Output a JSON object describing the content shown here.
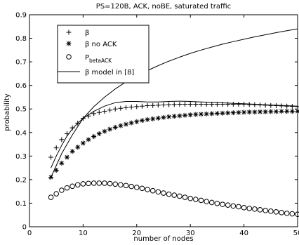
{
  "chart_data": {
    "type": "line",
    "title": "PS=120B, ACK, noBE, saturated traffic",
    "xlabel": "number of nodes",
    "ylabel": "probability",
    "xlim": [
      0,
      50
    ],
    "ylim": [
      0,
      0.9
    ],
    "xticks": [
      "0",
      "10",
      "20",
      "30",
      "40",
      "50"
    ],
    "yticks": [
      "0",
      "0.1",
      "0.2",
      "0.3",
      "0.4",
      "0.5",
      "0.6",
      "0.7",
      "0.8",
      "0.9"
    ],
    "grid": false,
    "legend_position": "top-left",
    "x": [
      4,
      5,
      6,
      7,
      8,
      9,
      10,
      11,
      12,
      13,
      14,
      15,
      16,
      17,
      18,
      19,
      20,
      21,
      22,
      23,
      24,
      25,
      26,
      27,
      28,
      29,
      30,
      31,
      32,
      33,
      34,
      35,
      36,
      37,
      38,
      39,
      40,
      41,
      42,
      43,
      44,
      45,
      46,
      47,
      48,
      49,
      50
    ],
    "series": [
      {
        "name": "β",
        "marker": "plus",
        "values": [
          0.295,
          0.335,
          0.37,
          0.395,
          0.42,
          0.44,
          0.46,
          0.47,
          0.48,
          0.485,
          0.49,
          0.495,
          0.5,
          0.503,
          0.506,
          0.508,
          0.51,
          0.512,
          0.514,
          0.515,
          0.516,
          0.517,
          0.518,
          0.519,
          0.52,
          0.52,
          0.52,
          0.52,
          0.52,
          0.52,
          0.52,
          0.52,
          0.52,
          0.52,
          0.52,
          0.52,
          0.52,
          0.519,
          0.518,
          0.517,
          0.516,
          0.515,
          0.514,
          0.513,
          0.512,
          0.511,
          0.51
        ]
      },
      {
        "name": "β no ACK",
        "marker": "asterisk",
        "values": [
          0.21,
          0.24,
          0.27,
          0.295,
          0.32,
          0.338,
          0.355,
          0.37,
          0.383,
          0.395,
          0.405,
          0.414,
          0.422,
          0.429,
          0.435,
          0.441,
          0.446,
          0.451,
          0.455,
          0.458,
          0.461,
          0.464,
          0.467,
          0.469,
          0.471,
          0.473,
          0.475,
          0.477,
          0.478,
          0.479,
          0.48,
          0.481,
          0.482,
          0.483,
          0.484,
          0.485,
          0.486,
          0.487,
          0.487,
          0.488,
          0.488,
          0.489,
          0.489,
          0.49,
          0.49,
          0.49,
          0.49
        ]
      },
      {
        "name": "P_betaACK",
        "marker": "circle",
        "values": [
          0.125,
          0.14,
          0.155,
          0.165,
          0.172,
          0.178,
          0.182,
          0.184,
          0.185,
          0.185,
          0.185,
          0.183,
          0.181,
          0.178,
          0.175,
          0.171,
          0.167,
          0.163,
          0.158,
          0.153,
          0.148,
          0.143,
          0.138,
          0.134,
          0.13,
          0.125,
          0.12,
          0.116,
          0.112,
          0.107,
          0.103,
          0.099,
          0.095,
          0.092,
          0.088,
          0.085,
          0.081,
          0.078,
          0.075,
          0.072,
          0.069,
          0.066,
          0.063,
          0.06,
          0.057,
          0.055,
          0.053
        ]
      }
    ],
    "model_series": [
      {
        "name": "β model in [8]",
        "x": [
          4,
          5,
          6,
          7,
          8,
          9,
          10,
          12,
          14,
          16,
          18,
          20,
          22,
          24,
          26,
          28,
          30,
          32,
          34,
          36,
          38,
          40,
          42,
          44,
          46,
          48,
          50
        ],
        "values": [
          0.25,
          0.3,
          0.345,
          0.385,
          0.415,
          0.44,
          0.46,
          0.49,
          0.512,
          0.527,
          0.532,
          0.532,
          0.53,
          0.53,
          0.532,
          0.533,
          0.532,
          0.53,
          0.528,
          0.526,
          0.524,
          0.522,
          0.52,
          0.518,
          0.516,
          0.514,
          0.512
        ]
      },
      {
        "name": "β model in [8]",
        "x": [
          4,
          6,
          8,
          10,
          12,
          14,
          16,
          18,
          20,
          22,
          24,
          26,
          28,
          30,
          32,
          34,
          36,
          38,
          40,
          42,
          44,
          46,
          48,
          50
        ],
        "values": [
          0.21,
          0.31,
          0.39,
          0.46,
          0.51,
          0.55,
          0.585,
          0.615,
          0.64,
          0.663,
          0.684,
          0.703,
          0.72,
          0.736,
          0.75,
          0.763,
          0.775,
          0.786,
          0.796,
          0.806,
          0.815,
          0.824,
          0.832,
          0.84
        ]
      }
    ],
    "legend": [
      {
        "marker": "plus",
        "label": "β"
      },
      {
        "marker": "asterisk",
        "label": "β no ACK"
      },
      {
        "marker": "circle",
        "label": "P",
        "subscript": "betaACK"
      },
      {
        "marker": "line",
        "label": "β model in [8]"
      }
    ]
  }
}
